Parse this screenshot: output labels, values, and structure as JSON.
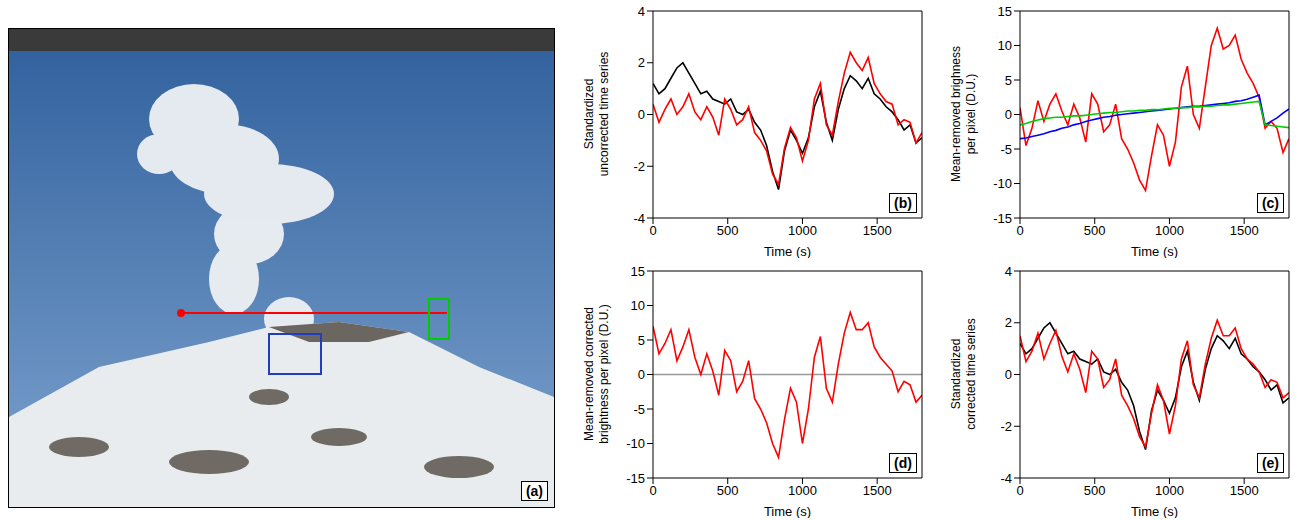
{
  "chart_data": [
    {
      "type": "image",
      "annotations": [
        "(a)"
      ]
    },
    {
      "type": "line",
      "annotations": [
        "(b)"
      ],
      "xlabel": "Time (s)",
      "ylabel": "Standardized uncorrected time series",
      "x": [
        0,
        40,
        80,
        120,
        160,
        200,
        240,
        280,
        320,
        360,
        400,
        440,
        480,
        520,
        560,
        600,
        640,
        680,
        720,
        760,
        800,
        840,
        880,
        920,
        960,
        1000,
        1040,
        1080,
        1120,
        1160,
        1200,
        1240,
        1280,
        1320,
        1360,
        1400,
        1440,
        1480,
        1520,
        1560,
        1600,
        1640,
        1680,
        1720,
        1760,
        1800
      ],
      "xlim": [
        0,
        1800
      ],
      "xticks": [
        0,
        500,
        1000,
        1500
      ],
      "ylim": [
        -4,
        4
      ],
      "yticks": [
        -4,
        -2,
        0,
        2,
        4
      ],
      "series": [
        {
          "color": "#000000",
          "values": [
            1.2,
            0.8,
            1.0,
            1.4,
            1.8,
            2.0,
            1.6,
            1.2,
            0.8,
            0.9,
            0.6,
            0.5,
            0.4,
            0.6,
            0.1,
            0.0,
            0.2,
            -0.3,
            -0.6,
            -1.2,
            -2.2,
            -2.9,
            -1.4,
            -0.6,
            -1.0,
            -1.5,
            -0.9,
            0.3,
            0.9,
            -0.3,
            -1.0,
            0.2,
            1.0,
            1.5,
            1.3,
            1.0,
            1.4,
            0.8,
            0.6,
            0.3,
            0.1,
            -0.2,
            -0.6,
            -0.4,
            -1.1,
            -0.9
          ]
        },
        {
          "color": "#ff0000",
          "values": [
            0.4,
            -0.3,
            0.2,
            0.6,
            0.0,
            0.3,
            0.8,
            0.1,
            -0.2,
            0.3,
            -0.1,
            -0.8,
            0.6,
            0.2,
            -0.4,
            -0.2,
            0.3,
            -0.7,
            -1.0,
            -1.4,
            -2.3,
            -2.7,
            -1.3,
            -0.5,
            -0.9,
            -1.8,
            -1.0,
            0.6,
            1.2,
            -0.4,
            -0.8,
            0.5,
            1.6,
            2.4,
            2.0,
            1.7,
            2.2,
            1.2,
            0.8,
            0.5,
            0.4,
            -0.4,
            -0.2,
            -0.3,
            -1.1,
            -0.7
          ]
        }
      ]
    },
    {
      "type": "line",
      "annotations": [
        "(c)"
      ],
      "xlabel": "Time (s)",
      "ylabel": "Mean-removed brighness per pixel (D.U.)",
      "x": [
        0,
        40,
        80,
        120,
        160,
        200,
        240,
        280,
        320,
        360,
        400,
        440,
        480,
        520,
        560,
        600,
        640,
        680,
        720,
        760,
        800,
        840,
        880,
        920,
        960,
        1000,
        1040,
        1080,
        1120,
        1160,
        1200,
        1240,
        1280,
        1320,
        1360,
        1400,
        1440,
        1480,
        1520,
        1560,
        1600,
        1640,
        1680,
        1720,
        1760,
        1800
      ],
      "xlim": [
        0,
        1800
      ],
      "xticks": [
        0,
        500,
        1000,
        1500
      ],
      "ylim": [
        -15,
        15
      ],
      "yticks": [
        -15,
        -10,
        -5,
        0,
        5,
        10,
        15
      ],
      "series": [
        {
          "color": "#ff0000",
          "values": [
            1.0,
            -4.5,
            -2.0,
            2.0,
            -1.0,
            1.5,
            3.0,
            0.5,
            -1.5,
            1.5,
            -0.5,
            -4.0,
            3.0,
            1.5,
            -2.5,
            -1.5,
            1.5,
            -3.5,
            -5.0,
            -7.0,
            -9.5,
            -11.0,
            -6.0,
            -1.5,
            -3.0,
            -7.5,
            -4.0,
            4.0,
            7.0,
            0.0,
            -2.0,
            4.0,
            10.0,
            12.5,
            9.5,
            10.0,
            11.5,
            8.0,
            6.0,
            4.5,
            2.5,
            -2.0,
            -1.0,
            -2.0,
            -5.5,
            -3.5
          ]
        },
        {
          "color": "#0000ff",
          "values": [
            -3.5,
            -3.4,
            -3.2,
            -3.0,
            -2.8,
            -2.5,
            -2.3,
            -2.0,
            -1.8,
            -1.5,
            -1.3,
            -1.0,
            -0.8,
            -0.6,
            -0.4,
            -0.3,
            -0.1,
            0.0,
            0.1,
            0.2,
            0.3,
            0.4,
            0.5,
            0.6,
            0.7,
            0.8,
            0.9,
            1.0,
            1.1,
            1.2,
            1.2,
            1.3,
            1.4,
            1.5,
            1.6,
            1.7,
            1.9,
            2.0,
            2.2,
            2.5,
            2.8,
            -1.5,
            -1.0,
            -0.5,
            0.2,
            0.8
          ]
        },
        {
          "color": "#00cc00",
          "values": [
            -1.5,
            -1.3,
            -1.0,
            -0.8,
            -0.6,
            -0.5,
            -0.4,
            -0.4,
            -0.3,
            -0.2,
            -0.2,
            -0.1,
            0.0,
            0.1,
            0.2,
            0.3,
            0.3,
            0.4,
            0.5,
            0.5,
            0.6,
            0.6,
            0.7,
            0.7,
            0.8,
            0.9,
            0.9,
            1.0,
            1.0,
            1.1,
            1.1,
            1.2,
            1.2,
            1.3,
            1.4,
            1.4,
            1.5,
            1.6,
            1.7,
            1.8,
            1.9,
            -1.5,
            -1.6,
            -1.7,
            -1.8,
            -1.9
          ]
        }
      ]
    },
    {
      "type": "line",
      "annotations": [
        "(d)"
      ],
      "xlabel": "Time (s)",
      "ylabel": "Mean-removed corrected brightness per pixel (D.U.)",
      "x": [
        0,
        40,
        80,
        120,
        160,
        200,
        240,
        280,
        320,
        360,
        400,
        440,
        480,
        520,
        560,
        600,
        640,
        680,
        720,
        760,
        800,
        840,
        880,
        920,
        960,
        1000,
        1040,
        1080,
        1120,
        1160,
        1200,
        1240,
        1280,
        1320,
        1360,
        1400,
        1440,
        1480,
        1520,
        1560,
        1600,
        1640,
        1680,
        1720,
        1760,
        1800
      ],
      "xlim": [
        0,
        1800
      ],
      "xticks": [
        0,
        500,
        1000,
        1500
      ],
      "ylim": [
        -15,
        15
      ],
      "yticks": [
        -15,
        -10,
        -5,
        0,
        5,
        10,
        15
      ],
      "series": [
        {
          "color": "#999999",
          "values": [
            0,
            0,
            0,
            0,
            0,
            0,
            0,
            0,
            0,
            0,
            0,
            0,
            0,
            0,
            0,
            0,
            0,
            0,
            0,
            0,
            0,
            0,
            0,
            0,
            0,
            0,
            0,
            0,
            0,
            0,
            0,
            0,
            0,
            0,
            0,
            0,
            0,
            0,
            0,
            0,
            0,
            0,
            0,
            0,
            0,
            0
          ]
        },
        {
          "color": "#ff0000",
          "values": [
            7.0,
            3.0,
            4.5,
            6.5,
            2.0,
            4.0,
            6.5,
            2.5,
            0.0,
            3.0,
            0.5,
            -3.0,
            3.5,
            2.0,
            -2.5,
            -1.0,
            2.0,
            -3.5,
            -5.0,
            -7.0,
            -10.0,
            -12.0,
            -6.5,
            -2.0,
            -4.0,
            -10.0,
            -5.0,
            2.5,
            5.5,
            -2.0,
            -4.0,
            1.5,
            6.0,
            9.0,
            6.5,
            6.5,
            7.5,
            4.0,
            2.5,
            1.5,
            0.5,
            -2.5,
            -1.0,
            -1.5,
            -4.0,
            -3.0
          ]
        }
      ]
    },
    {
      "type": "line",
      "annotations": [
        "(e)"
      ],
      "xlabel": "Time (s)",
      "ylabel": "Standardized corrected time series",
      "x": [
        0,
        40,
        80,
        120,
        160,
        200,
        240,
        280,
        320,
        360,
        400,
        440,
        480,
        520,
        560,
        600,
        640,
        680,
        720,
        760,
        800,
        840,
        880,
        920,
        960,
        1000,
        1040,
        1080,
        1120,
        1160,
        1200,
        1240,
        1280,
        1320,
        1360,
        1400,
        1440,
        1480,
        1520,
        1560,
        1600,
        1640,
        1680,
        1720,
        1760,
        1800
      ],
      "xlim": [
        0,
        1800
      ],
      "xticks": [
        0,
        500,
        1000,
        1500
      ],
      "ylim": [
        -4,
        4
      ],
      "yticks": [
        -4,
        -2,
        0,
        2,
        4
      ],
      "series": [
        {
          "color": "#000000",
          "values": [
            1.2,
            0.8,
            1.0,
            1.4,
            1.8,
            2.0,
            1.6,
            1.2,
            0.8,
            0.9,
            0.6,
            0.5,
            0.4,
            0.6,
            0.1,
            0.0,
            0.2,
            -0.3,
            -0.6,
            -1.2,
            -2.2,
            -2.9,
            -1.4,
            -0.6,
            -1.0,
            -1.5,
            -0.9,
            0.3,
            0.9,
            -0.3,
            -1.0,
            0.2,
            1.0,
            1.5,
            1.3,
            1.0,
            1.4,
            0.8,
            0.6,
            0.3,
            0.1,
            -0.2,
            -0.6,
            -0.4,
            -1.1,
            -0.9
          ]
        },
        {
          "color": "#ff0000",
          "values": [
            1.5,
            0.5,
            0.9,
            1.6,
            0.6,
            1.2,
            1.7,
            0.7,
            0.1,
            0.8,
            0.2,
            -0.7,
            0.9,
            0.6,
            -0.5,
            -0.2,
            0.6,
            -0.8,
            -1.2,
            -1.7,
            -2.4,
            -2.8,
            -1.5,
            -0.4,
            -1.0,
            -2.3,
            -1.2,
            0.6,
            1.3,
            -0.4,
            -0.9,
            0.4,
            1.4,
            2.1,
            1.5,
            1.5,
            1.8,
            1.0,
            0.6,
            0.4,
            0.1,
            -0.5,
            -0.2,
            -0.3,
            -0.9,
            -0.7
          ]
        }
      ]
    }
  ]
}
